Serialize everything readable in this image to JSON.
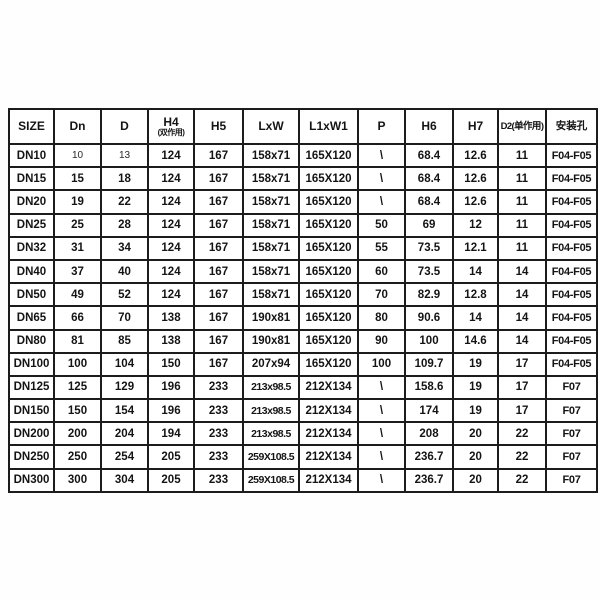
{
  "table": {
    "columns": [
      {
        "key": "size",
        "label": "SIZE"
      },
      {
        "key": "dn",
        "label": "Dn"
      },
      {
        "key": "d",
        "label": "D"
      },
      {
        "key": "h4",
        "label": "H4",
        "sublabel": "(双作用)"
      },
      {
        "key": "h5",
        "label": "H5"
      },
      {
        "key": "lxw",
        "label": "LxW"
      },
      {
        "key": "l1xw1",
        "label": "L1xW1"
      },
      {
        "key": "p",
        "label": "P"
      },
      {
        "key": "h6",
        "label": "H6"
      },
      {
        "key": "h7",
        "label": "H7"
      },
      {
        "key": "d2",
        "label": "D2(单作用)"
      },
      {
        "key": "mount",
        "label": "安装孔"
      }
    ],
    "rows": [
      [
        "DN10",
        "10",
        "13",
        "124",
        "167",
        "158x71",
        "165X120",
        "\\",
        "68.4",
        "12.6",
        "11",
        "F04-F05"
      ],
      [
        "DN15",
        "15",
        "18",
        "124",
        "167",
        "158x71",
        "165X120",
        "\\",
        "68.4",
        "12.6",
        "11",
        "F04-F05"
      ],
      [
        "DN20",
        "19",
        "22",
        "124",
        "167",
        "158x71",
        "165X120",
        "\\",
        "68.4",
        "12.6",
        "11",
        "F04-F05"
      ],
      [
        "DN25",
        "25",
        "28",
        "124",
        "167",
        "158x71",
        "165X120",
        "50",
        "69",
        "12",
        "11",
        "F04-F05"
      ],
      [
        "DN32",
        "31",
        "34",
        "124",
        "167",
        "158x71",
        "165X120",
        "55",
        "73.5",
        "12.1",
        "11",
        "F04-F05"
      ],
      [
        "DN40",
        "37",
        "40",
        "124",
        "167",
        "158x71",
        "165X120",
        "60",
        "73.5",
        "14",
        "14",
        "F04-F05"
      ],
      [
        "DN50",
        "49",
        "52",
        "124",
        "167",
        "158x71",
        "165X120",
        "70",
        "82.9",
        "12.8",
        "14",
        "F04-F05"
      ],
      [
        "DN65",
        "66",
        "70",
        "138",
        "167",
        "190x81",
        "165X120",
        "80",
        "90.6",
        "14",
        "14",
        "F04-F05"
      ],
      [
        "DN80",
        "81",
        "85",
        "138",
        "167",
        "190x81",
        "165X120",
        "90",
        "100",
        "14.6",
        "14",
        "F04-F05"
      ],
      [
        "DN100",
        "100",
        "104",
        "150",
        "167",
        "207x94",
        "165X120",
        "100",
        "109.7",
        "19",
        "17",
        "F04-F05"
      ],
      [
        "DN125",
        "125",
        "129",
        "196",
        "233",
        "213x98.5",
        "212X134",
        "\\",
        "158.6",
        "19",
        "17",
        "F07"
      ],
      [
        "DN150",
        "150",
        "154",
        "196",
        "233",
        "213x98.5",
        "212X134",
        "\\",
        "174",
        "19",
        "17",
        "F07"
      ],
      [
        "DN200",
        "200",
        "204",
        "194",
        "233",
        "213x98.5",
        "212X134",
        "\\",
        "208",
        "20",
        "22",
        "F07"
      ],
      [
        "DN250",
        "250",
        "254",
        "205",
        "233",
        "259X108.5",
        "212X134",
        "\\",
        "236.7",
        "20",
        "22",
        "F07"
      ],
      [
        "DN300",
        "300",
        "304",
        "205",
        "233",
        "259X108.5",
        "212X134",
        "\\",
        "236.7",
        "20",
        "22",
        "F07"
      ]
    ]
  }
}
